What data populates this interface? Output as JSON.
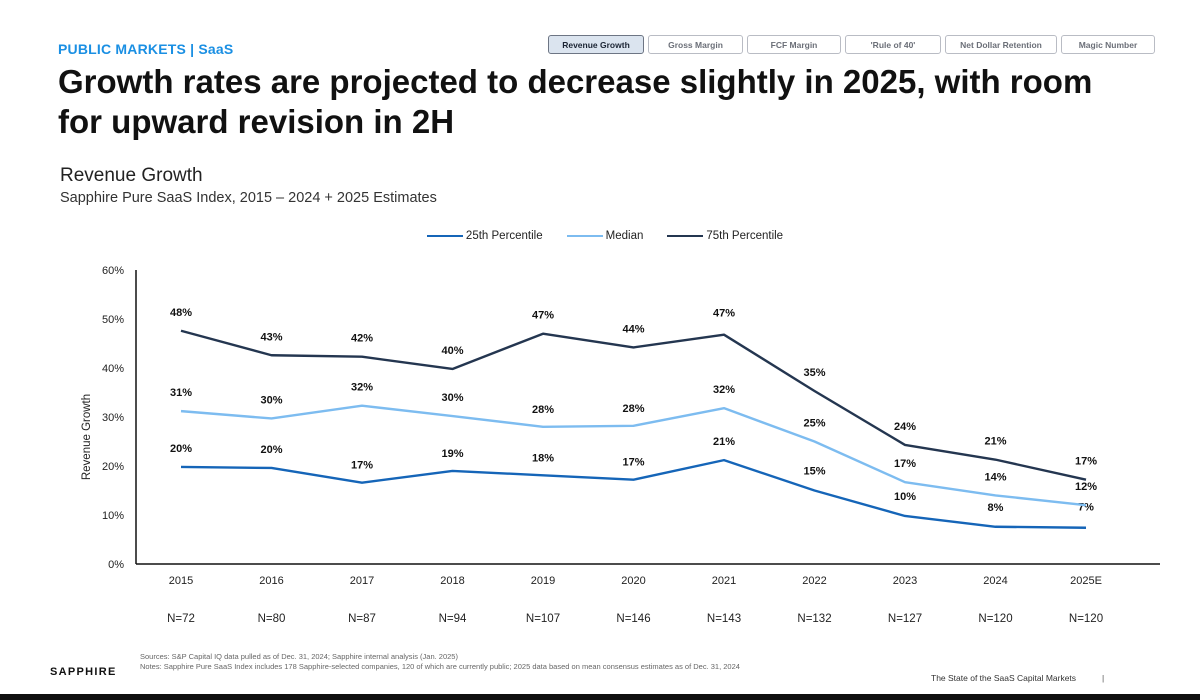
{
  "header": {
    "eyebrow": "PUBLIC MARKETS | SaaS",
    "headline": "Growth rates are projected to decrease slightly in 2025, with room for upward revision in 2H"
  },
  "tabs": [
    {
      "label": "Revenue Growth",
      "active": true
    },
    {
      "label": "Gross Margin",
      "active": false
    },
    {
      "label": "FCF Margin",
      "active": false
    },
    {
      "label": "'Rule of 40'",
      "active": false
    },
    {
      "label": "Net Dollar Retention",
      "active": false
    },
    {
      "label": "Magic Number",
      "active": false
    }
  ],
  "chart_data": {
    "type": "line",
    "title": "Revenue Growth",
    "subtitle": "Sapphire Pure SaaS Index, 2015 – 2024 + 2025 Estimates",
    "ylabel": "Revenue Growth",
    "xlabel": "",
    "ylim": [
      0,
      60
    ],
    "yticks": [
      "0%",
      "10%",
      "20%",
      "30%",
      "40%",
      "50%",
      "60%"
    ],
    "categories": [
      "2015",
      "2016",
      "2017",
      "2018",
      "2019",
      "2020",
      "2021",
      "2022",
      "2023",
      "2024",
      "2025E"
    ],
    "sample_sizes": [
      "N=72",
      "N=80",
      "N=87",
      "N=94",
      "N=107",
      "N=146",
      "N=143",
      "N=132",
      "N=127",
      "N=120",
      "N=120"
    ],
    "legend_position": "top-center",
    "grid": false,
    "series": [
      {
        "name": "25th Percentile",
        "color": "#1565b8",
        "values": [
          19.8,
          19.6,
          16.6,
          19.0,
          18.1,
          17.2,
          21.2,
          15.0,
          9.8,
          7.6,
          7.4
        ],
        "labels": [
          "20%",
          "20%",
          "17%",
          "19%",
          "18%",
          "17%",
          "21%",
          "15%",
          "10%",
          "8%",
          "7%"
        ]
      },
      {
        "name": "Median",
        "color": "#7dbcf0",
        "values": [
          31.2,
          29.7,
          32.3,
          30.2,
          28.0,
          28.2,
          31.8,
          25.0,
          16.7,
          14.0,
          12.0
        ],
        "labels": [
          "31%",
          "30%",
          "32%",
          "30%",
          "28%",
          "28%",
          "32%",
          "25%",
          "17%",
          "14%",
          "12%"
        ]
      },
      {
        "name": "75th Percentile",
        "color": "#243650",
        "values": [
          47.6,
          42.6,
          42.3,
          39.8,
          47.0,
          44.2,
          46.8,
          35.3,
          24.3,
          21.3,
          17.2
        ],
        "labels": [
          "48%",
          "43%",
          "42%",
          "40%",
          "47%",
          "44%",
          "47%",
          "35%",
          "24%",
          "21%",
          "17%"
        ]
      }
    ]
  },
  "footer": {
    "sources": "Sources: S&P Capital IQ data pulled as of Dec. 31, 2024; Sapphire internal analysis (Jan. 2025)",
    "notes": "Notes: Sapphire Pure SaaS Index includes 178 Sapphire-selected companies, 120 of which are currently public; 2025 data based on mean consensus estimates as of Dec. 31, 2024",
    "brand": "SAPPHIRE",
    "publication": "The State of the SaaS Capital Markets",
    "separator": "|"
  }
}
